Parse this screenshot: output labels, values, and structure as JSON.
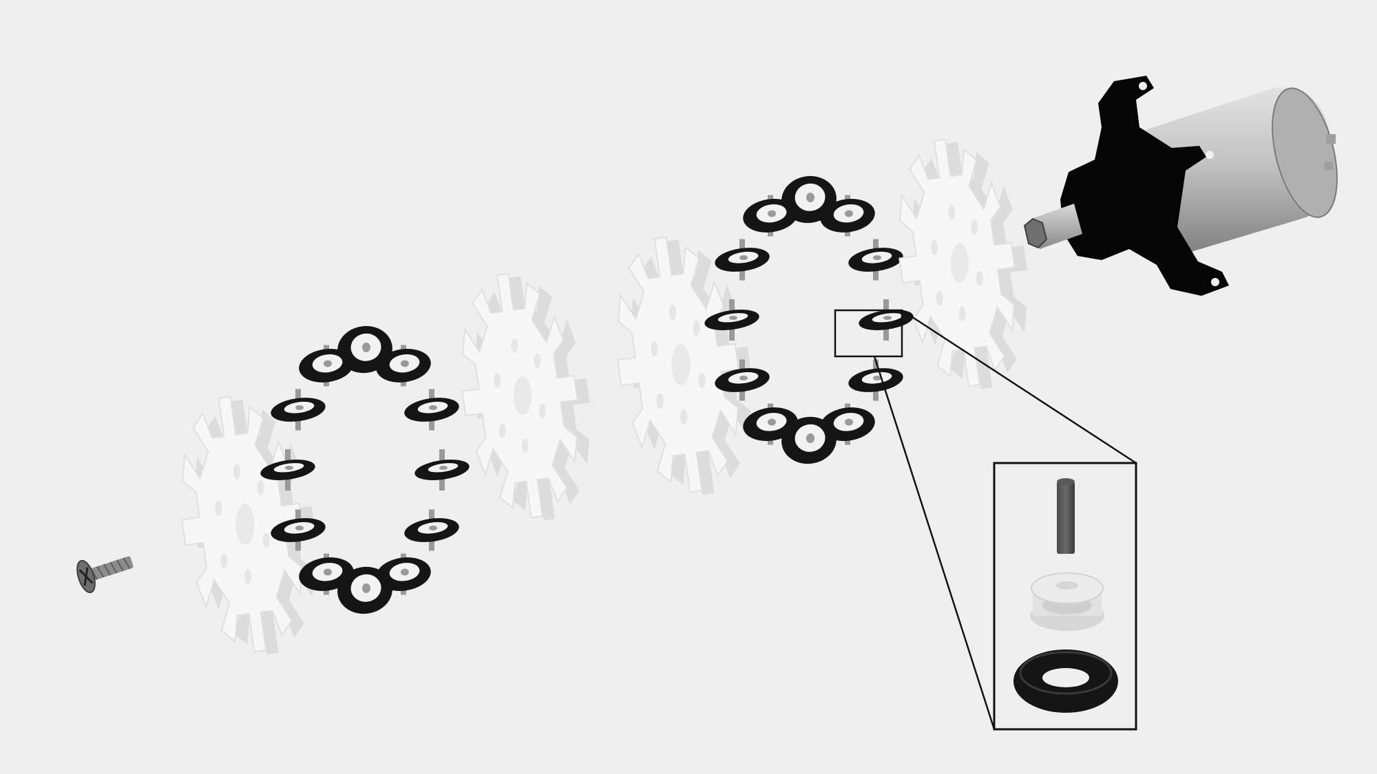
{
  "background": "#efefef",
  "colors": {
    "plastic": "#f7f7f7",
    "plastic_shade": "#dcdcdc",
    "rubber": "#151515",
    "metal_pin": "#9a9a9a",
    "motor_can": "#c4c4c4",
    "motor_can_dark": "#8d8d8d",
    "motor_bracket": "#050505",
    "callout_line": "#111111"
  },
  "parts": {
    "screw": {
      "icon": "flat-head-screw-icon",
      "count": 1
    },
    "hub_plate": {
      "icon": "gear-hub-plate-icon",
      "count": 4,
      "teeth": 12
    },
    "roller_ring": {
      "icon": "roller-ring-icon",
      "count": 2,
      "rollers_per_ring": 12
    },
    "motor": {
      "icon": "geared-motor-icon",
      "count": 1
    },
    "roller_detail": {
      "icon": "zoom-callout-icon",
      "components": [
        "metal-pin",
        "plastic-roller",
        "rubber-o-ring"
      ]
    }
  }
}
